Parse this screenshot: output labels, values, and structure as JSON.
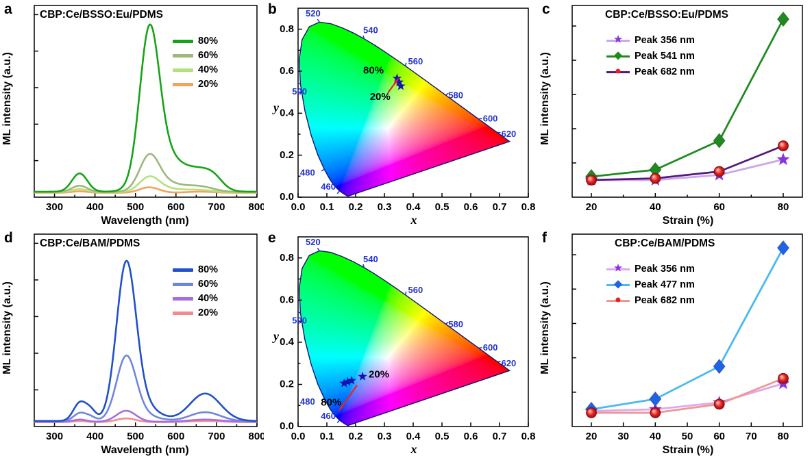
{
  "colors": {
    "axis": "#000000",
    "cie_wavelength_label": "#2233cc",
    "cie_point": "#1414b4",
    "cie_outline": "#14146e",
    "arrow": "#ee2222",
    "background": "#ffffff"
  },
  "cie_locus": [
    [
      380,
      0.1741,
      0.005
    ],
    [
      410,
      0.1726,
      0.0048
    ],
    [
      440,
      0.1644,
      0.0109
    ],
    [
      450,
      0.1566,
      0.0177
    ],
    [
      460,
      0.144,
      0.0297
    ],
    [
      470,
      0.1241,
      0.0578
    ],
    [
      475,
      0.1096,
      0.0868
    ],
    [
      480,
      0.0913,
      0.1327
    ],
    [
      485,
      0.0687,
      0.2007
    ],
    [
      490,
      0.0454,
      0.295
    ],
    [
      495,
      0.0235,
      0.4127
    ],
    [
      500,
      0.0082,
      0.5384
    ],
    [
      505,
      0.0039,
      0.6548
    ],
    [
      510,
      0.0139,
      0.7502
    ],
    [
      515,
      0.0389,
      0.812
    ],
    [
      520,
      0.0743,
      0.8338
    ],
    [
      525,
      0.1142,
      0.8262
    ],
    [
      530,
      0.1547,
      0.8059
    ],
    [
      535,
      0.1929,
      0.7816
    ],
    [
      540,
      0.2296,
      0.7543
    ],
    [
      545,
      0.2658,
      0.7243
    ],
    [
      550,
      0.3016,
      0.6923
    ],
    [
      555,
      0.3373,
      0.6589
    ],
    [
      560,
      0.3731,
      0.6245
    ],
    [
      570,
      0.4441,
      0.5547
    ],
    [
      580,
      0.5125,
      0.4866
    ],
    [
      590,
      0.5752,
      0.4242
    ],
    [
      600,
      0.627,
      0.3725
    ],
    [
      610,
      0.6658,
      0.334
    ],
    [
      620,
      0.6915,
      0.3083
    ],
    [
      630,
      0.7079,
      0.292
    ],
    [
      650,
      0.726,
      0.274
    ],
    [
      680,
      0.7334,
      0.2666
    ],
    [
      700,
      0.7347,
      0.2653
    ]
  ],
  "chart_data": [
    {
      "panel": "a",
      "letter": "a",
      "type": "line",
      "title": "CBP:Ce/BSSO:Eu/PDMS",
      "xlabel": "Wavelength (nm)",
      "ylabel": "ML intensity (a.u.)",
      "x_range": [
        250,
        800
      ],
      "x_ticks": [
        300,
        400,
        500,
        600,
        700,
        800
      ],
      "x_minor_ticks": [
        350,
        450,
        550,
        650,
        750
      ],
      "y_range": [
        0,
        1.05
      ],
      "y_ticks": [
        0.2,
        0.4,
        0.6,
        0.8,
        1.0
      ],
      "series": [
        {
          "name": "80%",
          "color": "#17a317",
          "base": 0.03,
          "peaks": [
            [
              362,
              19,
              0.1
            ],
            [
              534,
              24,
              0.78
            ],
            [
              572,
              42,
              0.2
            ],
            [
              660,
              34,
              0.1
            ],
            [
              695,
              22,
              0.04
            ]
          ]
        },
        {
          "name": "60%",
          "color": "#9cb87a",
          "base": 0.028,
          "peaks": [
            [
              362,
              19,
              0.035
            ],
            [
              534,
              24,
              0.175
            ],
            [
              572,
              42,
              0.05
            ],
            [
              660,
              34,
              0.028
            ]
          ]
        },
        {
          "name": "40%",
          "color": "#b5e07e",
          "base": 0.026,
          "peaks": [
            [
              362,
              19,
              0.018
            ],
            [
              534,
              24,
              0.075
            ],
            [
              572,
              42,
              0.02
            ],
            [
              660,
              34,
              0.012
            ]
          ]
        },
        {
          "name": "20%",
          "color": "#f2a25c",
          "base": 0.024,
          "peaks": [
            [
              362,
              19,
              0.008
            ],
            [
              534,
              24,
              0.03
            ],
            [
              660,
              34,
              0.006
            ]
          ]
        }
      ]
    },
    {
      "panel": "b",
      "letter": "b",
      "type": "cie",
      "xlabel": "x",
      "ylabel": "y",
      "x_range": [
        0,
        0.8
      ],
      "x_ticks": [
        0,
        0.1,
        0.2,
        0.3,
        0.4,
        0.5,
        0.6,
        0.7,
        0.8
      ],
      "y_range": [
        0,
        0.9
      ],
      "y_ticks": [
        0,
        0.2,
        0.4,
        0.6,
        0.8
      ],
      "y_minor_ticks": [
        0.1,
        0.3,
        0.5,
        0.7
      ],
      "wavelength_labels": [
        {
          "text": "460",
          "x": 0.105,
          "y": 0.048
        },
        {
          "text": "480",
          "x": 0.033,
          "y": 0.115
        },
        {
          "text": "500",
          "x": 0.005,
          "y": 0.5
        },
        {
          "text": "520",
          "x": 0.052,
          "y": 0.872
        },
        {
          "text": "540",
          "x": 0.252,
          "y": 0.792
        },
        {
          "text": "560",
          "x": 0.408,
          "y": 0.645
        },
        {
          "text": "580",
          "x": 0.548,
          "y": 0.483
        },
        {
          "text": "600",
          "x": 0.668,
          "y": 0.372
        },
        {
          "text": "620",
          "x": 0.732,
          "y": 0.298
        }
      ],
      "points": [
        [
          0.344,
          0.566
        ],
        [
          0.351,
          0.548
        ],
        [
          0.357,
          0.529
        ]
      ],
      "annotations": [
        {
          "text": "80%",
          "x": 0.262,
          "y": 0.602
        },
        {
          "text": "20%",
          "x": 0.285,
          "y": 0.476
        }
      ],
      "arrow": {
        "from": [
          0.312,
          0.497
        ],
        "to": [
          0.34,
          0.549
        ]
      }
    },
    {
      "panel": "c",
      "letter": "c",
      "type": "scatter-line",
      "title": "CBP:Ce/BSSO:Eu/PDMS",
      "xlabel": "Strain (%)",
      "ylabel": "ML intensity (a.u.)",
      "x_range": [
        14,
        86
      ],
      "x_ticks": [
        20,
        40,
        60,
        80
      ],
      "x_minor_ticks": [
        30,
        50,
        70
      ],
      "y_range": [
        0,
        1.12
      ],
      "y_ticks": [
        0.2,
        0.4,
        0.6,
        0.8,
        1.0
      ],
      "x": [
        20,
        40,
        60,
        80
      ],
      "series": [
        {
          "name": "Peak 356 nm",
          "marker": "star",
          "marker_color": "#8833dd",
          "line_color": "#c9a6ee",
          "values": [
            0.1,
            0.1,
            0.13,
            0.22
          ]
        },
        {
          "name": "Peak 541 nm",
          "marker": "diamond",
          "marker_color": "#1e8b1e",
          "line_color": "#1e8b1e",
          "values": [
            0.12,
            0.16,
            0.33,
            1.04
          ]
        },
        {
          "name": "Peak 682 nm",
          "marker": "circle",
          "marker_color": "#e62222",
          "line_color": "#55187a",
          "values": [
            0.1,
            0.11,
            0.15,
            0.3
          ]
        }
      ]
    },
    {
      "panel": "d",
      "letter": "d",
      "type": "line",
      "title": "CBP:Ce/BAM/PDMS",
      "xlabel": "Wavelength (nm)",
      "ylabel": "ML intensity (a.u.)",
      "x_range": [
        250,
        800
      ],
      "x_ticks": [
        300,
        400,
        500,
        600,
        700,
        800
      ],
      "x_minor_ticks": [
        350,
        450,
        550,
        650,
        750
      ],
      "y_range": [
        0,
        1.05
      ],
      "y_ticks": [
        0.2,
        0.4,
        0.6,
        0.8,
        1.0
      ],
      "series": [
        {
          "name": "80%",
          "color": "#2150c8",
          "base": 0.03,
          "peaks": [
            [
              363,
              16,
              0.1
            ],
            [
              390,
              13,
              0.05
            ],
            [
              477,
              24,
              0.8
            ],
            [
              508,
              40,
              0.1
            ],
            [
              672,
              38,
              0.15
            ]
          ]
        },
        {
          "name": "60%",
          "color": "#7086dc",
          "base": 0.028,
          "peaks": [
            [
              363,
              16,
              0.045
            ],
            [
              390,
              13,
              0.02
            ],
            [
              477,
              24,
              0.33
            ],
            [
              508,
              40,
              0.04
            ],
            [
              672,
              38,
              0.05
            ]
          ]
        },
        {
          "name": "40%",
          "color": "#a66de0",
          "base": 0.026,
          "peaks": [
            [
              363,
              16,
              0.012
            ],
            [
              477,
              24,
              0.06
            ],
            [
              672,
              38,
              0.012
            ]
          ]
        },
        {
          "name": "20%",
          "color": "#f08c8c",
          "base": 0.024,
          "peaks": [
            [
              363,
              16,
              0.006
            ],
            [
              477,
              24,
              0.02
            ],
            [
              672,
              38,
              0.006
            ]
          ]
        }
      ]
    },
    {
      "panel": "e",
      "letter": "e",
      "type": "cie",
      "xlabel": "x",
      "ylabel": "y",
      "x_range": [
        0,
        0.8
      ],
      "x_ticks": [
        0,
        0.1,
        0.2,
        0.3,
        0.4,
        0.5,
        0.6,
        0.7,
        0.8
      ],
      "y_range": [
        0,
        0.9
      ],
      "y_ticks": [
        0,
        0.2,
        0.4,
        0.6,
        0.8
      ],
      "y_minor_ticks": [
        0.1,
        0.3,
        0.5,
        0.7
      ],
      "wavelength_labels": [
        {
          "text": "460",
          "x": 0.105,
          "y": 0.048
        },
        {
          "text": "480",
          "x": 0.033,
          "y": 0.115
        },
        {
          "text": "500",
          "x": 0.005,
          "y": 0.5
        },
        {
          "text": "520",
          "x": 0.052,
          "y": 0.872
        },
        {
          "text": "540",
          "x": 0.252,
          "y": 0.792
        },
        {
          "text": "560",
          "x": 0.408,
          "y": 0.645
        },
        {
          "text": "580",
          "x": 0.548,
          "y": 0.483
        },
        {
          "text": "600",
          "x": 0.668,
          "y": 0.372
        },
        {
          "text": "620",
          "x": 0.732,
          "y": 0.298
        }
      ],
      "points": [
        [
          0.224,
          0.237
        ],
        [
          0.186,
          0.218
        ],
        [
          0.172,
          0.212
        ],
        [
          0.16,
          0.205
        ]
      ],
      "annotations": [
        {
          "text": "20%",
          "x": 0.281,
          "y": 0.246
        },
        {
          "text": "80%",
          "x": 0.115,
          "y": 0.112
        }
      ],
      "arrow": {
        "from": [
          0.205,
          0.196
        ],
        "to": [
          0.15,
          0.09
        ]
      }
    },
    {
      "panel": "f",
      "letter": "f",
      "type": "scatter-line",
      "title": "CBP:Ce/BAM/PDMS",
      "xlabel": "Strain (%)",
      "ylabel": "ML intensity (a.u.)",
      "x_range": [
        14,
        86
      ],
      "x_ticks": [
        20,
        30,
        40,
        50,
        60,
        70,
        80
      ],
      "y_range": [
        0,
        1.12
      ],
      "y_ticks": [
        0.2,
        0.4,
        0.6,
        0.8,
        1.0
      ],
      "x": [
        20,
        40,
        60,
        80
      ],
      "series": [
        {
          "name": "Peak 356 nm",
          "marker": "star",
          "marker_color": "#8833dd",
          "line_color": "#e0a8e8",
          "values": [
            0.09,
            0.1,
            0.14,
            0.25
          ]
        },
        {
          "name": "Peak 477 nm",
          "marker": "diamond",
          "marker_color": "#1f63e8",
          "line_color": "#49b9f2",
          "values": [
            0.1,
            0.16,
            0.35,
            1.04
          ]
        },
        {
          "name": "Peak 682 nm",
          "marker": "circle",
          "marker_color": "#e62222",
          "line_color": "#f09696",
          "values": [
            0.08,
            0.08,
            0.13,
            0.28
          ]
        }
      ]
    }
  ]
}
